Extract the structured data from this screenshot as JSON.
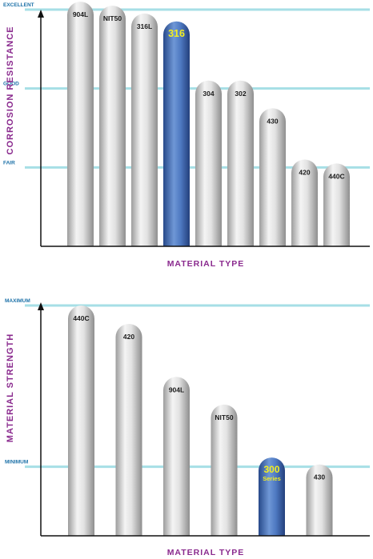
{
  "chart_data": [
    {
      "type": "bar",
      "title": "",
      "xlabel": "MATERIAL TYPE",
      "ylabel": "CORROSION RESISTANCE",
      "ylim": [
        0,
        3
      ],
      "y_tick_labels": [
        {
          "value": 1,
          "label": "FAIR"
        },
        {
          "value": 2,
          "label": "GOOD"
        },
        {
          "value": 3,
          "label": "EXCELLENT"
        }
      ],
      "categories": [
        "904L",
        "NIT50",
        "316L",
        "316",
        "304",
        "302",
        "430",
        "420",
        "440C"
      ],
      "category_sublabels": [
        "",
        "",
        "",
        "",
        "",
        "",
        "",
        "",
        ""
      ],
      "values": [
        3.1,
        3.05,
        2.95,
        2.85,
        2.1,
        2.1,
        1.75,
        1.1,
        1.05
      ],
      "highlight": [
        "316"
      ],
      "bar_color": "#c9c9c9",
      "highlight_color": "#3f6fb8",
      "grid_color": "#a6dfe6",
      "tick_label_color": "#1d71a8",
      "axis_label_color": "#8a2a8e",
      "grid": true
    },
    {
      "type": "bar",
      "title": "",
      "xlabel": "MATERIAL TYPE",
      "ylabel": "MATERIAL STRENGTH",
      "ylim": [
        0,
        1
      ],
      "y_tick_labels": [
        {
          "value": 0.3,
          "label": "MINIMUM"
        },
        {
          "value": 1,
          "label": "MAXIMUM"
        }
      ],
      "categories": [
        "440C",
        "420",
        "904L",
        "NIT50",
        "300",
        "430"
      ],
      "category_sublabels": [
        "",
        "",
        "",
        "",
        "Series",
        ""
      ],
      "values": [
        1.0,
        0.92,
        0.69,
        0.57,
        0.34,
        0.31
      ],
      "highlight": [
        "300"
      ],
      "bar_color": "#c9c9c9",
      "highlight_color": "#3f6fb8",
      "grid_color": "#a6dfe6",
      "tick_label_color": "#1d71a8",
      "axis_label_color": "#8a2a8e",
      "grid": true
    }
  ]
}
